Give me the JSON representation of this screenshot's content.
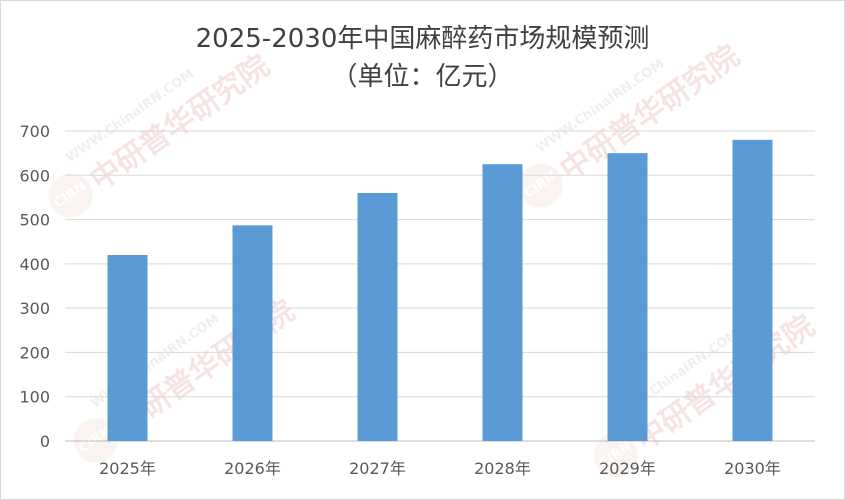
{
  "chart_data": {
    "type": "bar",
    "title": "2025-2030年中国麻醉药市场规模预测",
    "subtitle": "（单位：亿元）",
    "categories": [
      "2025年",
      "2026年",
      "2027年",
      "2028年",
      "2029年",
      "2030年"
    ],
    "values": [
      420,
      487,
      560,
      625,
      650,
      680
    ],
    "ylim": [
      0,
      700
    ],
    "yticks": [
      0,
      100,
      200,
      300,
      400,
      500,
      600,
      700
    ],
    "grid": true,
    "legend": "none",
    "bar_color": "#5b9bd5"
  },
  "watermark": {
    "logo_text": "CIRN",
    "name": "中研普华研究院",
    "url": "WWW.ChinaIRN.COM"
  }
}
